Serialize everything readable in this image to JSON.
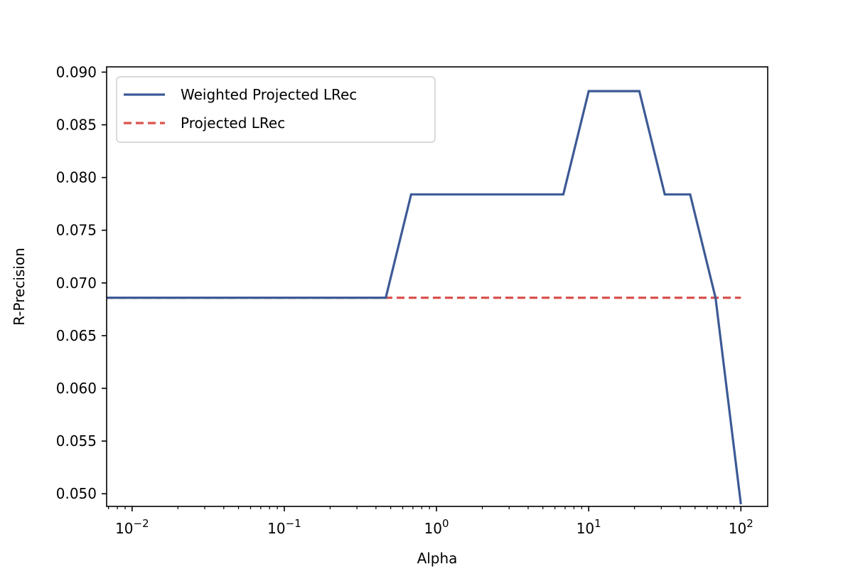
{
  "chart_data": {
    "type": "line",
    "xlabel": "Alpha",
    "ylabel": "R-Precision",
    "xscale": "log",
    "xlim": [
      0.0068,
      150
    ],
    "ylim": [
      0.0488,
      0.0905
    ],
    "xticks": [
      {
        "value": 0.01,
        "base": "10",
        "exp": "−2"
      },
      {
        "value": 0.1,
        "base": "10",
        "exp": "−1"
      },
      {
        "value": 1,
        "base": "10",
        "exp": "0"
      },
      {
        "value": 10,
        "base": "10",
        "exp": "1"
      },
      {
        "value": 100,
        "base": "10",
        "exp": "2"
      }
    ],
    "yticks": [
      "0.050",
      "0.055",
      "0.060",
      "0.065",
      "0.070",
      "0.075",
      "0.080",
      "0.085",
      "0.090"
    ],
    "legend_position": "upper-left",
    "grid": false,
    "series": [
      {
        "name": "Weighted Projected LRec",
        "color": "#3c5a96",
        "style": "solid",
        "x": [
          0.0068,
          0.01,
          0.0147,
          0.0215,
          0.0316,
          0.0464,
          0.0681,
          0.1,
          0.147,
          0.215,
          0.316,
          0.464,
          0.681,
          1,
          1.47,
          2.15,
          3.16,
          4.64,
          6.81,
          10,
          14.7,
          21.5,
          31.6,
          46.4,
          68.1,
          100
        ],
        "y": [
          0.0686,
          0.0686,
          0.0686,
          0.0686,
          0.0686,
          0.0686,
          0.0686,
          0.0686,
          0.0686,
          0.0686,
          0.0686,
          0.0686,
          0.0784,
          0.0784,
          0.0784,
          0.0784,
          0.0784,
          0.0784,
          0.0784,
          0.0882,
          0.0882,
          0.0882,
          0.0784,
          0.0784,
          0.0686,
          0.049
        ]
      },
      {
        "name": "Projected LRec",
        "color": "#d9534f",
        "style": "dashed",
        "x": [
          0.0068,
          100
        ],
        "y": [
          0.0686,
          0.0686
        ]
      }
    ]
  }
}
